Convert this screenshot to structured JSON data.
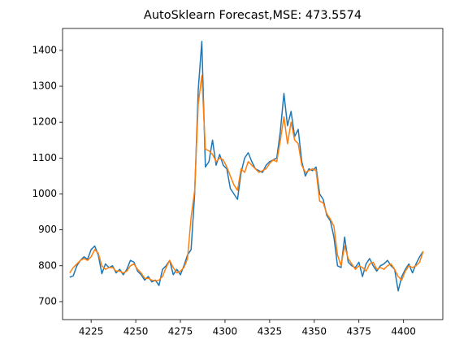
{
  "chart_data": {
    "type": "line",
    "title": "AutoSklearn Forecast,MSE: 473.5574",
    "x": [
      4213,
      4215,
      4217,
      4219,
      4221,
      4223,
      4225,
      4227,
      4229,
      4231,
      4233,
      4235,
      4237,
      4239,
      4241,
      4243,
      4245,
      4247,
      4249,
      4251,
      4253,
      4255,
      4257,
      4259,
      4261,
      4263,
      4265,
      4267,
      4269,
      4271,
      4273,
      4275,
      4277,
      4279,
      4281,
      4283,
      4285,
      4287,
      4289,
      4291,
      4293,
      4295,
      4297,
      4299,
      4301,
      4303,
      4305,
      4307,
      4309,
      4311,
      4313,
      4315,
      4317,
      4319,
      4321,
      4323,
      4325,
      4327,
      4329,
      4331,
      4333,
      4335,
      4337,
      4339,
      4341,
      4343,
      4345,
      4347,
      4349,
      4351,
      4353,
      4355,
      4357,
      4359,
      4361,
      4363,
      4365,
      4367,
      4369,
      4371,
      4373,
      4375,
      4377,
      4379,
      4381,
      4383,
      4385,
      4387,
      4389,
      4391,
      4393,
      4395,
      4397,
      4399,
      4401,
      4403,
      4405,
      4407,
      4409,
      4411
    ],
    "series": [
      {
        "color": "#1f77b4",
        "values": [
          768,
          772,
          800,
          815,
          825,
          818,
          845,
          855,
          830,
          778,
          805,
          795,
          800,
          780,
          790,
          775,
          790,
          815,
          810,
          785,
          775,
          760,
          770,
          755,
          760,
          745,
          790,
          800,
          815,
          775,
          790,
          775,
          800,
          830,
          845,
          1000,
          1290,
          1425,
          1075,
          1090,
          1150,
          1080,
          1110,
          1080,
          1070,
          1015,
          1000,
          985,
          1060,
          1100,
          1115,
          1090,
          1070,
          1065,
          1060,
          1080,
          1090,
          1095,
          1100,
          1175,
          1280,
          1190,
          1230,
          1160,
          1180,
          1090,
          1050,
          1070,
          1065,
          1075,
          1000,
          985,
          940,
          925,
          880,
          800,
          795,
          880,
          810,
          800,
          795,
          810,
          770,
          805,
          820,
          800,
          785,
          800,
          805,
          815,
          800,
          790,
          730,
          770,
          790,
          805,
          780,
          805,
          825,
          840
        ]
      },
      {
        "color": "#ff7f0e",
        "values": [
          780,
          795,
          805,
          815,
          820,
          815,
          825,
          845,
          835,
          800,
          790,
          795,
          795,
          785,
          785,
          780,
          785,
          800,
          805,
          790,
          780,
          765,
          765,
          760,
          758,
          760,
          770,
          795,
          815,
          795,
          780,
          785,
          795,
          820,
          935,
          1010,
          1250,
          1330,
          1125,
          1120,
          1110,
          1090,
          1100,
          1095,
          1075,
          1050,
          1025,
          1010,
          1070,
          1060,
          1090,
          1080,
          1070,
          1060,
          1065,
          1070,
          1085,
          1095,
          1090,
          1150,
          1215,
          1140,
          1200,
          1150,
          1140,
          1080,
          1060,
          1065,
          1070,
          1065,
          980,
          975,
          945,
          930,
          910,
          830,
          800,
          855,
          820,
          805,
          790,
          800,
          795,
          785,
          805,
          810,
          790,
          795,
          790,
          800,
          805,
          790,
          770,
          760,
          785,
          800,
          795,
          800,
          810,
          840
        ]
      }
    ],
    "xlim": [
      4209,
      4422
    ],
    "ylim": [
      650,
      1461
    ],
    "xticks": [
      4225,
      4250,
      4275,
      4300,
      4325,
      4350,
      4375,
      4400
    ],
    "yticks": [
      700,
      800,
      900,
      1000,
      1100,
      1200,
      1300,
      1400
    ],
    "grid": false
  }
}
